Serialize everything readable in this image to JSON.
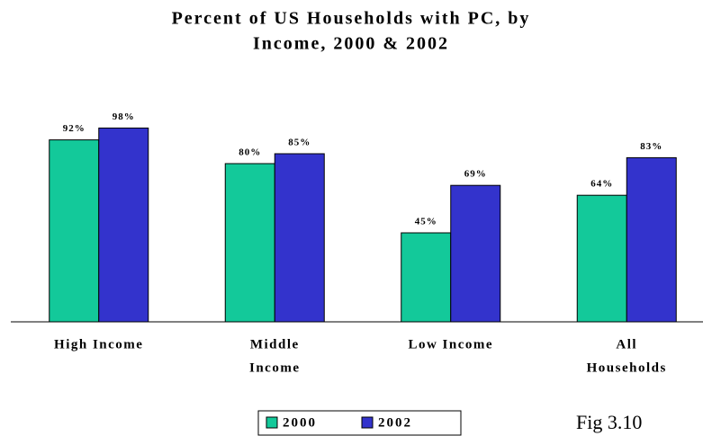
{
  "chart_data": {
    "type": "bar",
    "title": [
      "Percent of US Households with PC, by",
      "Income, 2000 & 2002"
    ],
    "categories": [
      [
        "High Income"
      ],
      [
        "Middle",
        "Income"
      ],
      [
        "Low Income"
      ],
      [
        "All",
        "Households"
      ]
    ],
    "series": [
      {
        "name": "2000",
        "color": "#13c99a",
        "values": [
          92,
          80,
          45,
          64
        ],
        "value_labels": [
          "92%",
          "80%",
          "45%",
          "64%"
        ]
      },
      {
        "name": "2002",
        "color": "#3333cc",
        "values": [
          98,
          85,
          69,
          83
        ],
        "value_labels": [
          "98%",
          "85%",
          "69%",
          "83%"
        ]
      }
    ],
    "ylim": [
      0,
      100
    ],
    "annotation": "Fig 3.10"
  }
}
